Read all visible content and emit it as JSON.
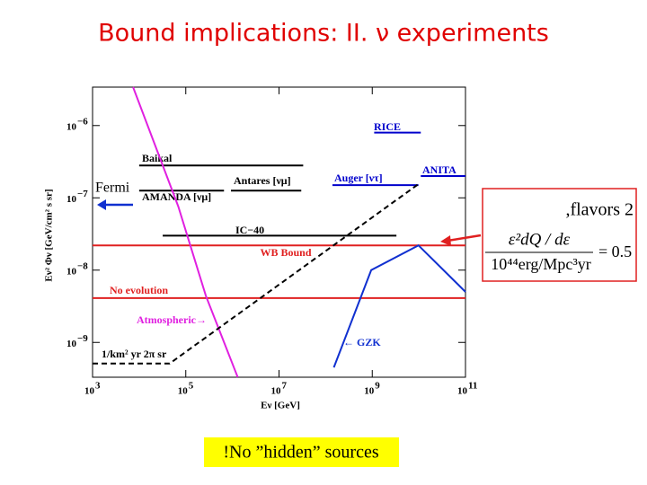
{
  "title": "Bound implications: II. ν experiments",
  "fermi": "Fermi",
  "flavors": ",flavors 2",
  "formula": {
    "numerator": "ε²dQ / dε",
    "denominator": "10⁴⁴erg/Mpc³yr",
    "result": "= 0.5"
  },
  "note": "!No ”hidden” sources",
  "chart_data": {
    "type": "line",
    "log_x": true,
    "log_y": true,
    "x_label": "Eν [GeV]",
    "y_label": "Eν² Φν [GeV/cm² s sr]",
    "xlim": [
      1000,
      100000000000
    ],
    "ylim": [
      3.3e-10,
      3.4e-06
    ],
    "xticks": [
      {
        "value": 1000,
        "label": "10",
        "exponent": "3"
      },
      {
        "value": 100000,
        "label": "10",
        "exponent": "5"
      },
      {
        "value": 10000000,
        "label": "10",
        "exponent": "7"
      },
      {
        "value": 1000000000,
        "label": "10",
        "exponent": "9"
      },
      {
        "value": 100000000000,
        "label": "10",
        "exponent": "11"
      }
    ],
    "yticks": [
      {
        "value": 1e-06,
        "label": "10",
        "exponent": "−6"
      },
      {
        "value": 1e-07,
        "label": "10",
        "exponent": "−7"
      },
      {
        "value": 1e-08,
        "label": "10",
        "exponent": "−8"
      },
      {
        "value": 1e-09,
        "label": "10",
        "exponent": "−9"
      }
    ],
    "series": [
      {
        "name": "Baikal",
        "color": "#000000",
        "x": [
          10000,
          33000000
        ],
        "values": [
          2.8e-07,
          2.8e-07
        ]
      },
      {
        "name": "AMANDA [νμ]",
        "color": "#000000",
        "x": [
          10000,
          660000
        ],
        "values": [
          1.26e-07,
          1.26e-07
        ]
      },
      {
        "name": "Antares [νμ]",
        "color": "#000000",
        "x": [
          930000,
          30000000
        ],
        "values": [
          1.26e-07,
          1.26e-07
        ]
      },
      {
        "name": "IC−40",
        "color": "#000000",
        "x": [
          32000,
          3300000000
        ],
        "values": [
          3e-08,
          3e-08
        ]
      },
      {
        "name": "Auger [ντ]",
        "color": "#0000cc",
        "x": [
          140000000,
          9800000000
        ],
        "values": [
          1.5e-07,
          1.5e-07
        ]
      },
      {
        "name": "ANITA",
        "color": "#0000cc",
        "x": [
          11000000000,
          100000000000
        ],
        "values": [
          2e-07,
          2e-07
        ]
      },
      {
        "name": "RICE",
        "color": "#0000cc",
        "x": [
          1100000000,
          11000000000
        ],
        "values": [
          8e-07,
          8e-07
        ]
      },
      {
        "name": "WB Bound",
        "color": "#e02020",
        "x": [
          1000,
          100000000000
        ],
        "values": [
          2.2e-08,
          2.2e-08
        ]
      },
      {
        "name": "No evolution",
        "color": "#e02020",
        "x": [
          1000,
          100000000000
        ],
        "values": [
          4.1e-09,
          4.1e-09
        ]
      },
      {
        "name": "Atmospheric→",
        "color": "#e020e0",
        "x": [
          7400,
          69000,
          270000,
          1300000
        ],
        "values": [
          3.4e-06,
          7.6e-08,
          4.4e-09,
          3.3e-10
        ]
      },
      {
        "name": "← GZK",
        "color": "#1030d0",
        "x": [
          150000000,
          950000000,
          9800000000,
          100000000000
        ],
        "values": [
          4.5e-10,
          1e-08,
          2.2e-08,
          5e-09
        ]
      },
      {
        "name": "1/km² yr 2π sr",
        "color": "#000000",
        "dashed": true,
        "x": [
          1000,
          45000,
          9800000000
        ],
        "values": [
          5.1e-10,
          5.1e-10,
          1.55e-07
        ]
      }
    ]
  }
}
